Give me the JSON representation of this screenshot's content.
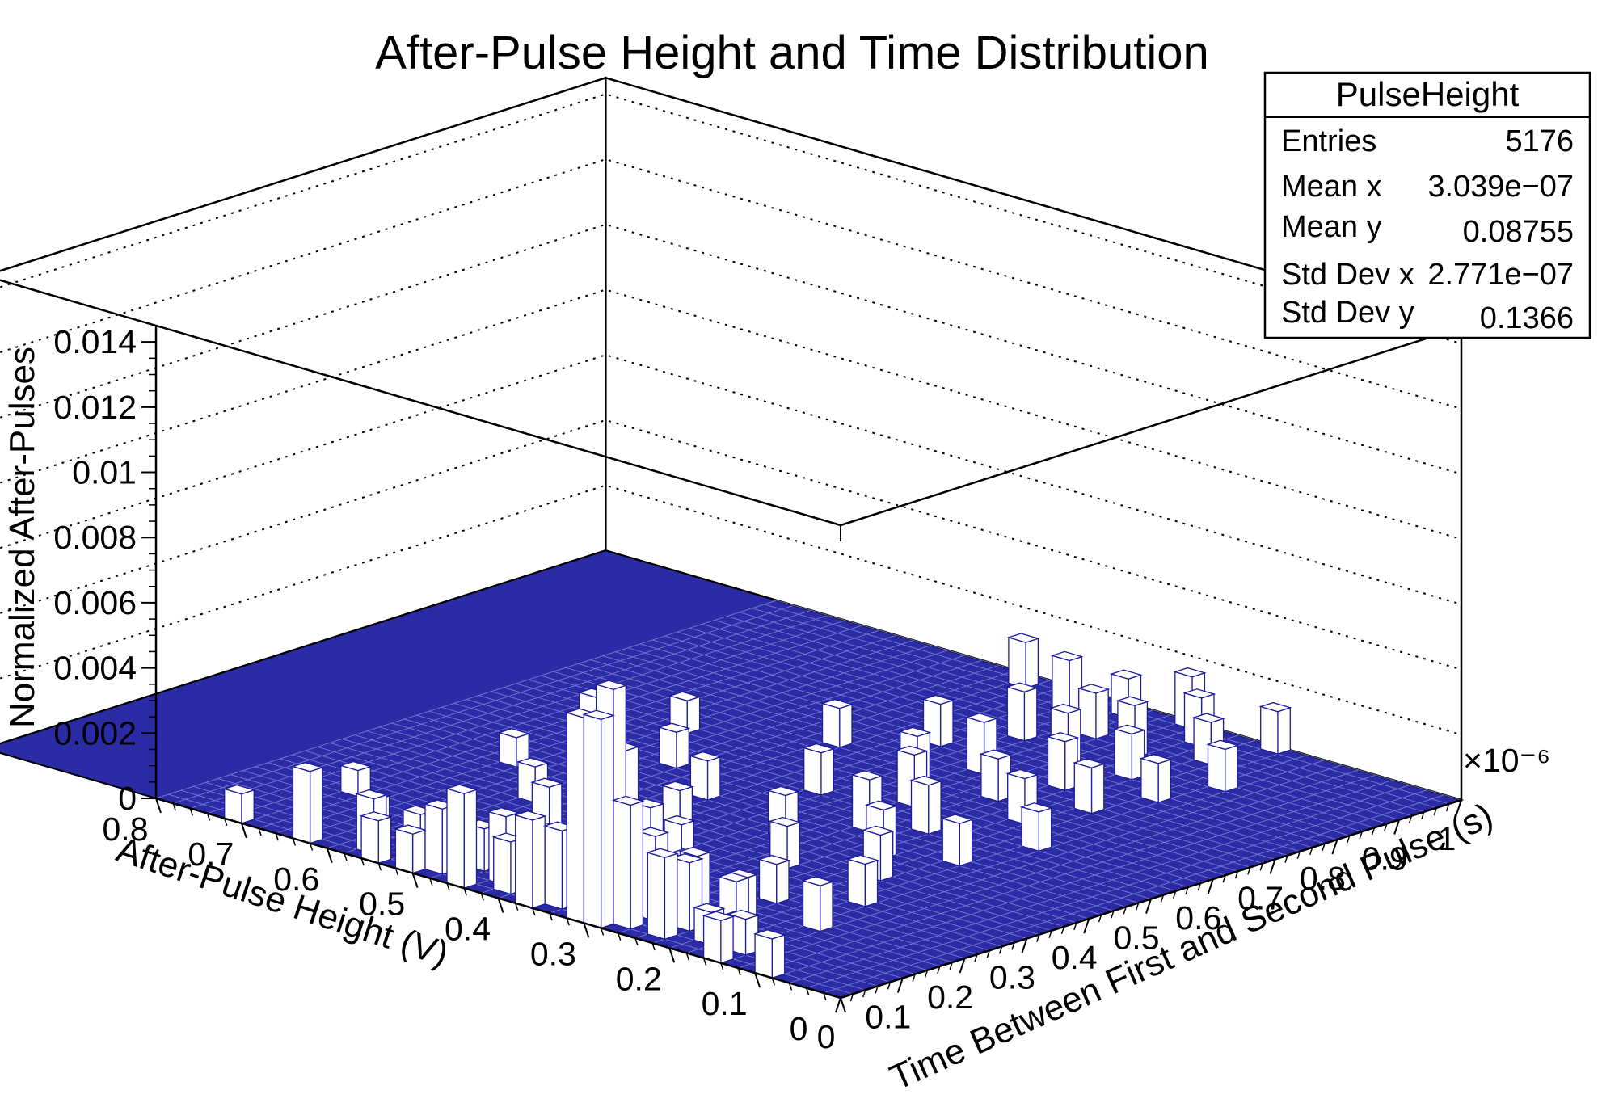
{
  "chart_data": {
    "type": "lego",
    "title": "After-Pulse Height and Time Distribution",
    "xlabel": "Time Between First and Second Pulse (s)",
    "xlabel_multiplier": "×10⁻⁶",
    "ylabel": "After-Pulse Height (V)",
    "zlabel": "Normalized After-Pulses",
    "xlim": [
      0,
      1e-06
    ],
    "ylim": [
      0,
      0.8
    ],
    "zlim": [
      0,
      0.0145
    ],
    "x_ticks": [
      {
        "value": 0,
        "label": "0"
      },
      {
        "value": 0.1,
        "label": "0.1"
      },
      {
        "value": 0.2,
        "label": "0.2"
      },
      {
        "value": 0.3,
        "label": "0.3"
      },
      {
        "value": 0.4,
        "label": "0.4"
      },
      {
        "value": 0.5,
        "label": "0.5"
      },
      {
        "value": 0.6,
        "label": "0.6"
      },
      {
        "value": 0.7,
        "label": "0.7"
      },
      {
        "value": 0.8,
        "label": "0.8"
      },
      {
        "value": 0.9,
        "label": "0.9"
      },
      {
        "value": 1.0,
        "label": "1"
      }
    ],
    "y_ticks": [
      {
        "value": 0,
        "label": "0"
      },
      {
        "value": 0.1,
        "label": "0.1"
      },
      {
        "value": 0.2,
        "label": "0.2"
      },
      {
        "value": 0.3,
        "label": "0.3"
      },
      {
        "value": 0.4,
        "label": "0.4"
      },
      {
        "value": 0.5,
        "label": "0.5"
      },
      {
        "value": 0.6,
        "label": "0.6"
      },
      {
        "value": 0.7,
        "label": "0.7"
      },
      {
        "value": 0.8,
        "label": "0.8"
      }
    ],
    "z_ticks": [
      {
        "value": 0,
        "label": "0"
      },
      {
        "value": 0.002,
        "label": "0.002"
      },
      {
        "value": 0.004,
        "label": "0.004"
      },
      {
        "value": 0.006,
        "label": "0.006"
      },
      {
        "value": 0.008,
        "label": "0.008"
      },
      {
        "value": 0.01,
        "label": "0.01"
      },
      {
        "value": 0.012,
        "label": "0.012"
      },
      {
        "value": 0.014,
        "label": "0.014"
      }
    ],
    "grid": true,
    "bar_fill": "#ffffff",
    "bar_edge": "#1a1a9c",
    "floor_color": "#2b2ba6",
    "bins": [
      {
        "x": 0.01,
        "y": 0.09,
        "z": 0.0012
      },
      {
        "x": 0.01,
        "y": 0.15,
        "z": 0.0013
      },
      {
        "x": 0.01,
        "y": 0.29,
        "z": 0.0064
      },
      {
        "x": 0.01,
        "y": 0.31,
        "z": 0.0063
      },
      {
        "x": 0.01,
        "y": 0.37,
        "z": 0.0027
      },
      {
        "x": 0.01,
        "y": 0.45,
        "z": 0.0029
      },
      {
        "x": 0.01,
        "y": 0.51,
        "z": 0.0012
      },
      {
        "x": 0.01,
        "y": 0.55,
        "z": 0.0013
      },
      {
        "x": 0.01,
        "y": 0.63,
        "z": 0.0022
      },
      {
        "x": 0.01,
        "y": 0.71,
        "z": 0.0009
      },
      {
        "x": 0.03,
        "y": 0.23,
        "z": 0.0025
      },
      {
        "x": 0.03,
        "y": 0.27,
        "z": 0.0038
      },
      {
        "x": 0.03,
        "y": 0.29,
        "z": 0.0072
      },
      {
        "x": 0.03,
        "y": 0.31,
        "z": 0.0068
      },
      {
        "x": 0.03,
        "y": 0.35,
        "z": 0.0024
      },
      {
        "x": 0.03,
        "y": 0.41,
        "z": 0.0016
      },
      {
        "x": 0.03,
        "y": 0.49,
        "z": 0.002
      },
      {
        "x": 0.03,
        "y": 0.57,
        "z": 0.0017
      },
      {
        "x": 0.05,
        "y": 0.15,
        "z": 0.0011
      },
      {
        "x": 0.05,
        "y": 0.19,
        "z": 0.001
      },
      {
        "x": 0.05,
        "y": 0.29,
        "z": 0.0052
      },
      {
        "x": 0.05,
        "y": 0.33,
        "z": 0.0036
      },
      {
        "x": 0.05,
        "y": 0.39,
        "z": 0.0018
      },
      {
        "x": 0.05,
        "y": 0.43,
        "z": 0.0021
      },
      {
        "x": 0.05,
        "y": 0.53,
        "z": 0.0014
      },
      {
        "x": 0.07,
        "y": 0.17,
        "z": 0.0008
      },
      {
        "x": 0.07,
        "y": 0.23,
        "z": 0.0021
      },
      {
        "x": 0.07,
        "y": 0.27,
        "z": 0.0026
      },
      {
        "x": 0.07,
        "y": 0.35,
        "z": 0.0019
      },
      {
        "x": 0.07,
        "y": 0.47,
        "z": 0.0013
      },
      {
        "x": 0.09,
        "y": 0.19,
        "z": 0.0017
      },
      {
        "x": 0.09,
        "y": 0.29,
        "z": 0.0032
      },
      {
        "x": 0.09,
        "y": 0.37,
        "z": 0.0012
      },
      {
        "x": 0.09,
        "y": 0.61,
        "z": 0.001
      },
      {
        "x": 0.11,
        "y": 0.25,
        "z": 0.0019
      },
      {
        "x": 0.11,
        "y": 0.33,
        "z": 0.0015
      },
      {
        "x": 0.13,
        "y": 0.21,
        "z": 0.0014
      },
      {
        "x": 0.13,
        "y": 0.45,
        "z": 0.0011
      },
      {
        "x": 0.15,
        "y": 0.29,
        "z": 0.0013
      },
      {
        "x": 0.17,
        "y": 0.15,
        "z": 0.0014
      },
      {
        "x": 0.17,
        "y": 0.69,
        "z": 0.0008
      },
      {
        "x": 0.19,
        "y": 0.39,
        "z": 0.0012
      },
      {
        "x": 0.21,
        "y": 0.23,
        "z": 0.0012
      },
      {
        "x": 0.23,
        "y": 0.51,
        "z": 0.0013
      },
      {
        "x": 0.25,
        "y": 0.37,
        "z": 0.0011
      },
      {
        "x": 0.27,
        "y": 0.17,
        "z": 0.0013
      },
      {
        "x": 0.29,
        "y": 0.57,
        "z": 0.0011
      },
      {
        "x": 0.31,
        "y": 0.29,
        "z": 0.0013
      },
      {
        "x": 0.33,
        "y": 0.43,
        "z": 0.0012
      },
      {
        "x": 0.35,
        "y": 0.21,
        "z": 0.0014
      },
      {
        "x": 0.37,
        "y": 0.65,
        "z": 0.0009
      },
      {
        "x": 0.39,
        "y": 0.35,
        "z": 0.0013
      },
      {
        "x": 0.41,
        "y": 0.25,
        "z": 0.0015
      },
      {
        "x": 0.43,
        "y": 0.47,
        "z": 0.0012
      },
      {
        "x": 0.45,
        "y": 0.19,
        "z": 0.0013
      },
      {
        "x": 0.47,
        "y": 0.31,
        "z": 0.0016
      },
      {
        "x": 0.49,
        "y": 0.55,
        "z": 0.0011
      },
      {
        "x": 0.51,
        "y": 0.27,
        "z": 0.0015
      },
      {
        "x": 0.53,
        "y": 0.41,
        "z": 0.0013
      },
      {
        "x": 0.55,
        "y": 0.17,
        "z": 0.0012
      },
      {
        "x": 0.57,
        "y": 0.33,
        "z": 0.0016
      },
      {
        "x": 0.59,
        "y": 0.61,
        "z": 0.001
      },
      {
        "x": 0.61,
        "y": 0.23,
        "z": 0.0014
      },
      {
        "x": 0.63,
        "y": 0.37,
        "z": 0.0015
      },
      {
        "x": 0.65,
        "y": 0.29,
        "z": 0.0013
      },
      {
        "x": 0.67,
        "y": 0.49,
        "z": 0.0012
      },
      {
        "x": 0.69,
        "y": 0.21,
        "z": 0.0014
      },
      {
        "x": 0.71,
        "y": 0.35,
        "z": 0.0016
      },
      {
        "x": 0.73,
        "y": 0.27,
        "z": 0.0015
      },
      {
        "x": 0.75,
        "y": 0.43,
        "z": 0.0013
      },
      {
        "x": 0.77,
        "y": 0.19,
        "z": 0.0012
      },
      {
        "x": 0.79,
        "y": 0.31,
        "z": 0.0017
      },
      {
        "x": 0.81,
        "y": 0.25,
        "z": 0.0014
      },
      {
        "x": 0.83,
        "y": 0.39,
        "z": 0.0015
      },
      {
        "x": 0.85,
        "y": 0.17,
        "z": 0.0013
      },
      {
        "x": 0.87,
        "y": 0.29,
        "z": 0.0016
      },
      {
        "x": 0.89,
        "y": 0.35,
        "z": 0.0014
      },
      {
        "x": 0.91,
        "y": 0.23,
        "z": 0.0013
      },
      {
        "x": 0.93,
        "y": 0.41,
        "z": 0.0017
      },
      {
        "x": 0.95,
        "y": 0.27,
        "z": 0.0015
      },
      {
        "x": 0.97,
        "y": 0.49,
        "z": 0.0014
      },
      {
        "x": 0.99,
        "y": 0.31,
        "z": 0.0016
      },
      {
        "x": 0.99,
        "y": 0.21,
        "z": 0.0013
      },
      {
        "x": 0.97,
        "y": 0.37,
        "z": 0.0012
      }
    ]
  },
  "stats_box": {
    "title": "PulseHeight",
    "rows": [
      {
        "label": "Entries",
        "value": "5176"
      },
      {
        "label": "Mean x",
        "value": "3.039e−07"
      },
      {
        "label": "Mean y",
        "value": "0.08755"
      },
      {
        "label": "Std Dev x",
        "value": "2.771e−07"
      },
      {
        "label": "Std Dev y",
        "value": "0.1366"
      }
    ]
  }
}
